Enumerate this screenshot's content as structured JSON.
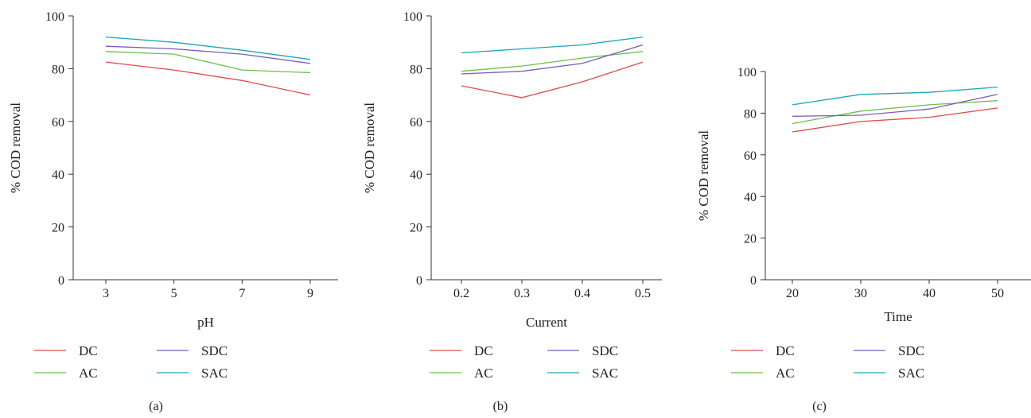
{
  "chart_data": [
    {
      "type": "line",
      "caption": "(a)",
      "xlabel": "pH",
      "ylabel": "% COD removal",
      "categories": [
        "3",
        "5",
        "7",
        "9"
      ],
      "ylim": [
        0,
        100
      ],
      "yticks": [
        0,
        20,
        40,
        60,
        80,
        100
      ],
      "grid": false,
      "legend": "bottom, two columns",
      "series": [
        {
          "name": "DC",
          "color": "#e04a4a",
          "values": [
            82.5,
            79.5,
            75.5,
            70
          ]
        },
        {
          "name": "AC",
          "color": "#6dbf4b",
          "values": [
            86.5,
            85.5,
            79.5,
            78.5
          ]
        },
        {
          "name": "SDC",
          "color": "#7b5bbf",
          "values": [
            88.5,
            87.5,
            85.5,
            82
          ]
        },
        {
          "name": "SAC",
          "color": "#1aa6b7",
          "values": [
            92,
            90,
            87,
            83.5
          ]
        }
      ]
    },
    {
      "type": "line",
      "caption": "(b)",
      "xlabel": "Current",
      "ylabel": "% COD removal",
      "categories": [
        "0.2",
        "0.3",
        "0.4",
        "0.5"
      ],
      "ylim": [
        0,
        100
      ],
      "yticks": [
        0,
        20,
        40,
        60,
        80,
        100
      ],
      "grid": false,
      "legend": "bottom, two columns",
      "series": [
        {
          "name": "DC",
          "color": "#e04a4a",
          "values": [
            73.5,
            69,
            75,
            82.5
          ]
        },
        {
          "name": "AC",
          "color": "#6dbf4b",
          "values": [
            79,
            81,
            84,
            86.5
          ]
        },
        {
          "name": "SDC",
          "color": "#7b5bbf",
          "values": [
            78,
            79,
            82,
            89
          ]
        },
        {
          "name": "SAC",
          "color": "#1aa6b7",
          "values": [
            86,
            87.5,
            89,
            92
          ]
        }
      ]
    },
    {
      "type": "line",
      "caption": "(c)",
      "xlabel": "Time",
      "ylabel": "% COD removal",
      "categories": [
        "20",
        "30",
        "40",
        "50"
      ],
      "ylim": [
        0,
        100
      ],
      "yticks": [
        0,
        20,
        40,
        60,
        80,
        100
      ],
      "grid": false,
      "legend": "bottom, two columns",
      "series": [
        {
          "name": "DC",
          "color": "#e04a4a",
          "values": [
            71,
            76,
            78,
            82.5
          ]
        },
        {
          "name": "AC",
          "color": "#6dbf4b",
          "values": [
            75,
            81,
            84,
            86
          ]
        },
        {
          "name": "SDC",
          "color": "#7b5bbf",
          "values": [
            78.5,
            79,
            82,
            89
          ]
        },
        {
          "name": "SAC",
          "color": "#1aa6b7",
          "values": [
            84,
            89,
            90,
            92.5
          ]
        }
      ]
    }
  ]
}
